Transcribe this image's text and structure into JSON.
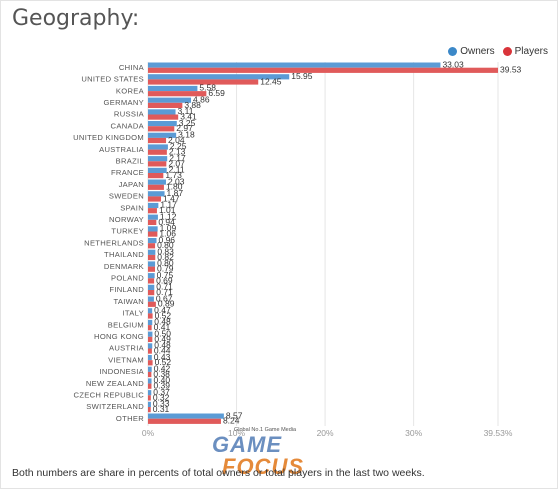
{
  "page": {
    "title": "Geography:"
  },
  "legend": {
    "owners": "Owners",
    "players": "Players"
  },
  "colors": {
    "owners": "#5b9bd5",
    "players": "#e05a5a",
    "grid": "#e6e6e6",
    "text": "#333333",
    "axis_text": "#999999"
  },
  "footnote": "Both numbers are share in percents of total owners or total players in the last two weeks.",
  "watermark": {
    "tagline": "Global No.1 Game Media",
    "line1": "GAME",
    "line2": "FOCUS"
  },
  "chart_data": {
    "type": "bar",
    "orientation": "horizontal",
    "title": "Geography:",
    "categories": [
      "CHINA",
      "UNITED STATES",
      "KOREA",
      "GERMANY",
      "RUSSIA",
      "CANADA",
      "UNITED KINGDOM",
      "AUSTRALIA",
      "BRAZIL",
      "FRANCE",
      "JAPAN",
      "SWEDEN",
      "SPAIN",
      "NORWAY",
      "TURKEY",
      "NETHERLANDS",
      "THAILAND",
      "DENMARK",
      "POLAND",
      "FINLAND",
      "TAIWAN",
      "ITALY",
      "BELGIUM",
      "HONG KONG",
      "AUSTRIA",
      "VIETNAM",
      "INDONESIA",
      "NEW ZEALAND",
      "CZECH REPUBLIC",
      "SWITZERLAND",
      "OTHER"
    ],
    "series": [
      {
        "name": "Owners",
        "values": [
          33.03,
          15.95,
          5.58,
          4.86,
          3.11,
          3.25,
          3.18,
          2.25,
          2.17,
          2.11,
          2.03,
          1.87,
          1.17,
          1.12,
          1.09,
          0.96,
          0.83,
          0.8,
          0.75,
          0.71,
          0.67,
          0.47,
          0.48,
          0.5,
          0.48,
          0.43,
          0.42,
          0.4,
          0.37,
          0.33,
          8.57
        ]
      },
      {
        "name": "Players",
        "values": [
          39.53,
          12.45,
          6.59,
          3.88,
          3.41,
          2.97,
          2.04,
          2.13,
          2.07,
          1.73,
          1.8,
          1.47,
          1.01,
          0.94,
          1.06,
          0.8,
          0.82,
          0.79,
          0.69,
          0.71,
          0.89,
          0.52,
          0.41,
          0.49,
          0.44,
          0.52,
          0.38,
          0.39,
          0.32,
          0.31,
          8.24
        ]
      }
    ],
    "value_labels": {
      "owners": [
        "33.03",
        "15.95",
        "5.58",
        "4.86",
        "3.11",
        "3.25",
        "3.18",
        "2.25",
        "2.17",
        "2.11",
        "2.03",
        "1.87",
        "1.17",
        "1.12",
        "1.09",
        "0.96",
        "0.83",
        "0.80",
        "0.75",
        "0.71",
        "0.67",
        "0.47",
        "0.48",
        "0.50",
        "0.48",
        "0.43",
        "0.42",
        "0.40",
        "0.37",
        "0.33",
        "8.57"
      ],
      "players": [
        "39.53",
        "12.45",
        "6.59",
        "3.88",
        "3.41",
        "2.97",
        "2.04",
        "2.13",
        "2.07",
        "1.73",
        "1.80",
        "1.47",
        "1.01",
        "0.94",
        "1.06",
        "0.80",
        "0.82",
        "0.79",
        "0.69",
        "0.71",
        "0.89",
        "0.52",
        "0.41",
        "0.49",
        "0.44",
        "0.52",
        "0.38",
        "0.39",
        "0.32",
        "0.31",
        "8.24"
      ]
    },
    "x_ticks": [
      0,
      10,
      20,
      30,
      39.53
    ],
    "x_tick_labels": [
      "0%",
      "10%",
      "20%",
      "30%",
      "39.53%"
    ],
    "xlim": [
      0,
      39.53
    ],
    "grid": true,
    "legend_position": "top-right"
  }
}
